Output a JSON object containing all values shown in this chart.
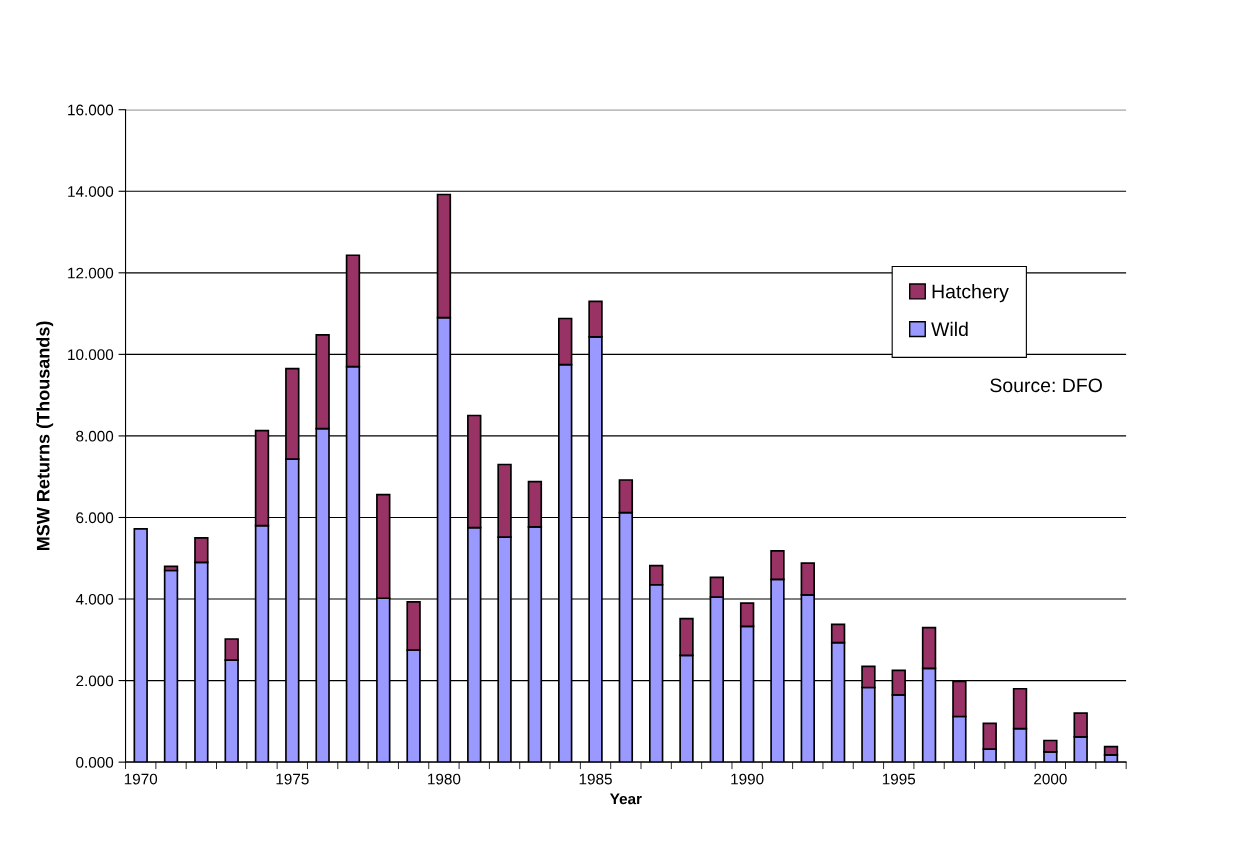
{
  "chart_data": {
    "type": "bar",
    "stacked": true,
    "xlabel": "Year",
    "ylabel": "MSW Returns (Thousands)",
    "categories": [
      "1970",
      null,
      null,
      null,
      null,
      "1975",
      null,
      null,
      null,
      null,
      "1980",
      null,
      null,
      null,
      null,
      "1985",
      null,
      null,
      null,
      null,
      "1990",
      null,
      null,
      null,
      null,
      "1995",
      null,
      null,
      null,
      null,
      "2000",
      null,
      null
    ],
    "series": [
      {
        "name": "Wild",
        "color": "#9999ff",
        "values": [
          5.72,
          4.7,
          4.9,
          2.5,
          5.8,
          7.43,
          8.18,
          9.7,
          4.02,
          2.75,
          10.9,
          5.75,
          5.52,
          5.77,
          9.75,
          10.43,
          6.12,
          4.35,
          2.62,
          4.05,
          3.33,
          4.48,
          4.1,
          2.93,
          1.83,
          1.65,
          2.3,
          1.12,
          0.32,
          0.82,
          0.25,
          0.62,
          0.18
        ]
      },
      {
        "name": "Hatchery",
        "color": "#993366",
        "values": [
          null,
          0.1,
          0.6,
          0.52,
          2.33,
          2.22,
          2.3,
          2.73,
          2.54,
          1.18,
          3.02,
          2.75,
          1.78,
          1.11,
          1.13,
          0.87,
          0.8,
          0.47,
          0.9,
          0.48,
          0.57,
          0.7,
          0.78,
          0.45,
          0.52,
          0.6,
          1.0,
          0.86,
          0.63,
          0.98,
          0.28,
          0.58,
          0.2
        ]
      }
    ],
    "ylim": [
      0,
      16
    ],
    "yticks": [
      {
        "value": 0,
        "label": "0.000"
      },
      {
        "value": 2,
        "label": "2.000"
      },
      {
        "value": 4,
        "label": "4.000"
      },
      {
        "value": 6,
        "label": "6.000"
      },
      {
        "value": 8,
        "label": "8.000"
      },
      {
        "value": 10,
        "label": "10.000"
      },
      {
        "value": 12,
        "label": "12.000"
      },
      {
        "value": 14,
        "label": "14.000"
      },
      {
        "value": 16,
        "label": "16.000"
      }
    ],
    "grid": "y",
    "legend": "right",
    "annotations": [
      "Source: DFO"
    ]
  }
}
